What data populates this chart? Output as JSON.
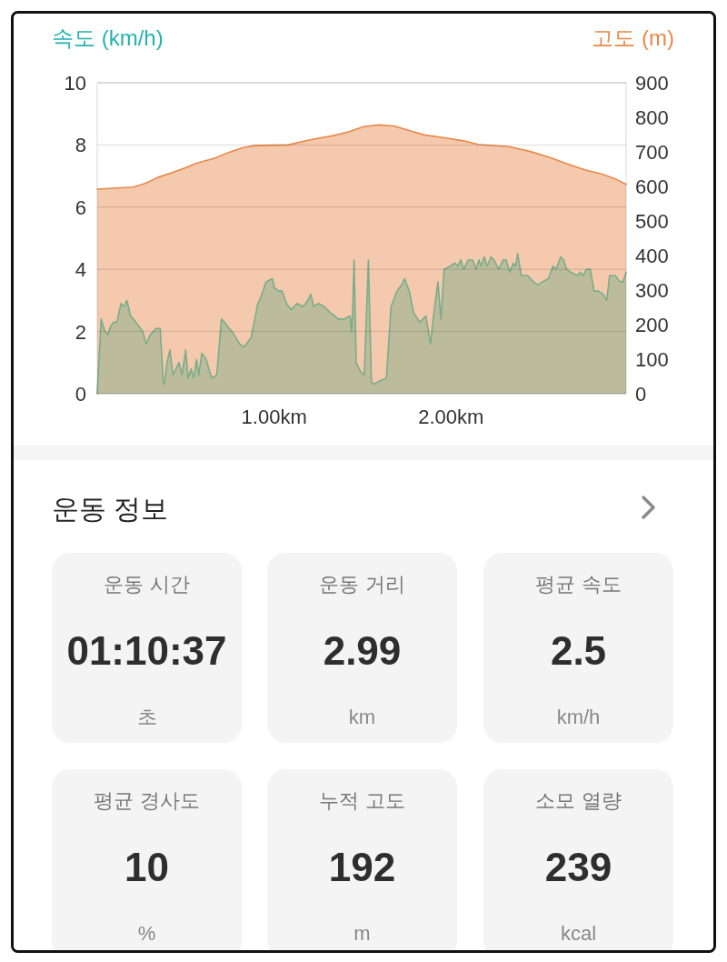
{
  "chart_data": [
    {
      "type": "area",
      "ylabel": "속도 (km/h)",
      "y2label": "고도 (m)",
      "xlim": [
        0,
        2.99
      ],
      "xticks": [
        {
          "value": 1,
          "label": "1.00km"
        },
        {
          "value": 2,
          "label": "2.00km"
        }
      ],
      "ylim": [
        0,
        10
      ],
      "yticks": [
        0,
        2,
        4,
        6,
        8,
        10
      ],
      "y2lim": [
        0,
        900
      ],
      "y2ticks": [
        0,
        100,
        200,
        300,
        400,
        500,
        600,
        700,
        800,
        900
      ],
      "grid": "y",
      "series": [
        {
          "axis": "y2",
          "color": "#e8884a",
          "x": [
            0,
            0.205,
            0.274,
            0.342,
            0.428,
            0.496,
            0.565,
            0.668,
            0.736,
            0.822,
            0.89,
            1.079,
            1.198,
            1.335,
            1.421,
            1.506,
            1.592,
            1.677,
            1.763,
            1.849,
            1.969,
            2.071,
            2.157,
            2.328,
            2.448,
            2.568,
            2.653,
            2.756,
            2.859,
            2.928,
            2.99
          ],
          "values": [
            592,
            598,
            609,
            626,
            641,
            653,
            668,
            682,
            697,
            712,
            718,
            720,
            734,
            747,
            758,
            773,
            778,
            775,
            762,
            749,
            740,
            732,
            721,
            715,
            701,
            682,
            666,
            648,
            635,
            622,
            606
          ]
        },
        {
          "color": "#78ad8a",
          "x": [
            0,
            0.022,
            0.043,
            0.06,
            0.077,
            0.094,
            0.111,
            0.134,
            0.151,
            0.168,
            0.188,
            0.205,
            0.231,
            0.257,
            0.277,
            0.3,
            0.334,
            0.356,
            0.373,
            0.38,
            0.394,
            0.411,
            0.428,
            0.462,
            0.479,
            0.5,
            0.514,
            0.531,
            0.545,
            0.562,
            0.574,
            0.591,
            0.616,
            0.647,
            0.676,
            0.702,
            0.719,
            0.745,
            0.762,
            0.805,
            0.83,
            0.87,
            0.908,
            0.925,
            0.955,
            0.99,
            1.002,
            1.027,
            1.045,
            1.07,
            1.096,
            1.13,
            1.164,
            1.19,
            1.207,
            1.224,
            1.25,
            1.284,
            1.318,
            1.344,
            1.361,
            1.395,
            1.43,
            1.438,
            1.443,
            1.452,
            1.464,
            1.49,
            1.51,
            1.533,
            1.55,
            1.562,
            1.592,
            1.635,
            1.661,
            1.695,
            1.721,
            1.738,
            1.764,
            1.789,
            1.824,
            1.858,
            1.884,
            1.901,
            1.926,
            1.943,
            1.961,
            1.995,
            2.021,
            2.038,
            2.055,
            2.072,
            2.098,
            2.123,
            2.14,
            2.158,
            2.171,
            2.188,
            2.205,
            2.226,
            2.243,
            2.269,
            2.295,
            2.312,
            2.332,
            2.353,
            2.365,
            2.377,
            2.397,
            2.432,
            2.466,
            2.491,
            2.517,
            2.551,
            2.577,
            2.594,
            2.62,
            2.637,
            2.654,
            2.68,
            2.714,
            2.731,
            2.748,
            2.765,
            2.788,
            2.808,
            2.834,
            2.86,
            2.88,
            2.897,
            2.928,
            2.955,
            2.972,
            2.99
          ],
          "values": [
            0,
            2.4,
            2.0,
            1.9,
            2.2,
            2.3,
            2.3,
            2.9,
            2.8,
            3.0,
            2.5,
            2.4,
            2.2,
            2.0,
            1.6,
            1.9,
            2.1,
            2.1,
            0.4,
            0.3,
            1.0,
            1.4,
            0.6,
            1.0,
            0.6,
            1.4,
            0.5,
            0.8,
            0.5,
            1.1,
            0.6,
            1.3,
            1.1,
            0.5,
            0.6,
            2.4,
            2.3,
            2.1,
            2.0,
            1.6,
            1.5,
            1.8,
            2.9,
            3.1,
            3.6,
            3.7,
            3.4,
            3.3,
            3.3,
            2.9,
            2.7,
            2.9,
            2.8,
            3.0,
            3.2,
            2.8,
            2.9,
            2.8,
            2.6,
            2.5,
            2.4,
            2.4,
            2.5,
            2.0,
            2.5,
            4.3,
            1.0,
            0.7,
            0.6,
            4.3,
            0.4,
            0.3,
            0.4,
            0.5,
            2.8,
            3.3,
            3.5,
            3.7,
            3.3,
            2.6,
            2.3,
            2.5,
            1.6,
            2.5,
            3.6,
            2.4,
            4.0,
            4.1,
            4.2,
            4.1,
            4.3,
            4.0,
            4.3,
            4.3,
            4.0,
            4.3,
            4.1,
            4.4,
            4.1,
            4.4,
            4.3,
            4.0,
            4.3,
            4.3,
            3.9,
            4.2,
            4.1,
            4.5,
            3.8,
            3.8,
            3.6,
            3.5,
            3.6,
            3.7,
            4.1,
            4.0,
            4.4,
            4.3,
            4.0,
            3.9,
            3.8,
            3.9,
            3.8,
            4.0,
            4.0,
            3.3,
            3.3,
            3.2,
            3.0,
            3.8,
            3.8,
            3.6,
            3.6,
            3.9
          ]
        }
      ]
    },
    {
      "type": "other",
      "title": "운동 정보",
      "annotations": [
        "운동 시간",
        "01:10:37",
        "초",
        "운동 거리",
        "2.99",
        "km",
        "평균 속도",
        "2.5",
        "km/h",
        "평균 경사도",
        "10",
        "%",
        "누적 고도",
        "192",
        "m",
        "소모 열량",
        "239",
        "kcal"
      ]
    }
  ]
}
